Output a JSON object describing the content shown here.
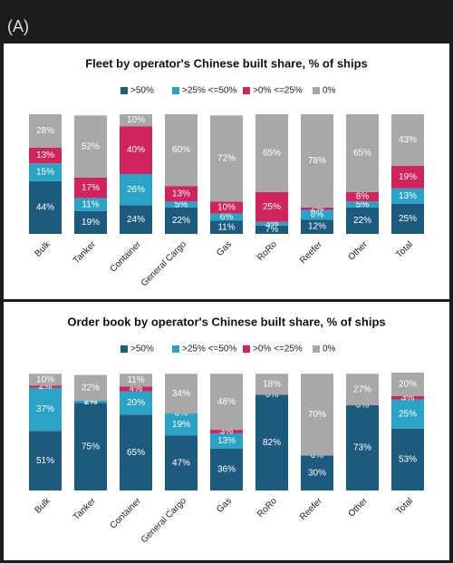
{
  "panel_label": "(A)",
  "chart_data": [
    {
      "type": "stacked-bar",
      "title": "Fleet by operator's Chinese built share, % of ships",
      "categories": [
        "Bulk",
        "Tanker",
        "Container",
        "General Cargo",
        "Gas",
        "RoRo",
        "Reefer",
        "Other",
        "Total"
      ],
      "series": [
        {
          "name": ">50%",
          "color": "#1d5a7e",
          "values": [
            44,
            19,
            24,
            22,
            11,
            7,
            12,
            22,
            25
          ],
          "value_labels": [
            "44%",
            "19%",
            "24%",
            "22%",
            "11%",
            "7%",
            "12%",
            "22%",
            "25%"
          ]
        },
        {
          "name": ">25% <=50%",
          "color": "#2aa3c6",
          "values": [
            15,
            11,
            26,
            5,
            6,
            3,
            8,
            5,
            13
          ],
          "value_labels": [
            "15%",
            "11%",
            "26%",
            "5%",
            "6%",
            "3%",
            "8%",
            "5%",
            "13%"
          ]
        },
        {
          "name": ">0% <=25%",
          "color": "#d0245f",
          "values": [
            13,
            17,
            40,
            13,
            10,
            25,
            2,
            8,
            19
          ],
          "value_labels": [
            "13%",
            "17%",
            "40%",
            "13%",
            "10%",
            "25%",
            "2%",
            "8%",
            "19%"
          ]
        },
        {
          "name": "0%",
          "color": "#a8a8a8",
          "values": [
            28,
            52,
            10,
            60,
            72,
            65,
            78,
            65,
            43
          ],
          "value_labels": [
            "28%",
            "52%",
            "10%",
            "60%",
            "72%",
            "65%",
            "78%",
            "65%",
            "43%"
          ]
        }
      ]
    },
    {
      "type": "stacked-bar",
      "title": "Order book by operator's Chinese built share, % of ships",
      "categories": [
        "Bulk",
        "Tanker",
        "Container",
        "General Cargo",
        "Gas",
        "RoRo",
        "Reefer",
        "Other",
        "Total"
      ],
      "series": [
        {
          "name": ">50%",
          "color": "#1d5a7e",
          "values": [
            51,
            75,
            65,
            47,
            36,
            82,
            30,
            73,
            53
          ],
          "value_labels": [
            "51%",
            "75%",
            "65%",
            "47%",
            "36%",
            "82%",
            "30%",
            "73%",
            "53%"
          ]
        },
        {
          "name": ">25% <=50%",
          "color": "#2aa3c6",
          "values": [
            37,
            2,
            20,
            19,
            13,
            0,
            0,
            0,
            25
          ],
          "value_labels": [
            "37%",
            "2%",
            "20%",
            "19%",
            "13%",
            "0%",
            "0%",
            "0%",
            "25%"
          ]
        },
        {
          "name": ">0% <=25%",
          "color": "#d0245f",
          "values": [
            2,
            0,
            4,
            0,
            3,
            0,
            0,
            0,
            3
          ],
          "value_labels": [
            "2%",
            "0%",
            "4%",
            "0%",
            "3%",
            null,
            null,
            null,
            "3%"
          ]
        },
        {
          "name": "0%",
          "color": "#a8a8a8",
          "values": [
            10,
            22,
            11,
            34,
            48,
            18,
            70,
            27,
            20
          ],
          "value_labels": [
            "10%",
            "22%",
            "11%",
            "34%",
            "48%",
            "18%",
            "70%",
            "27%",
            "20%"
          ]
        }
      ]
    }
  ]
}
